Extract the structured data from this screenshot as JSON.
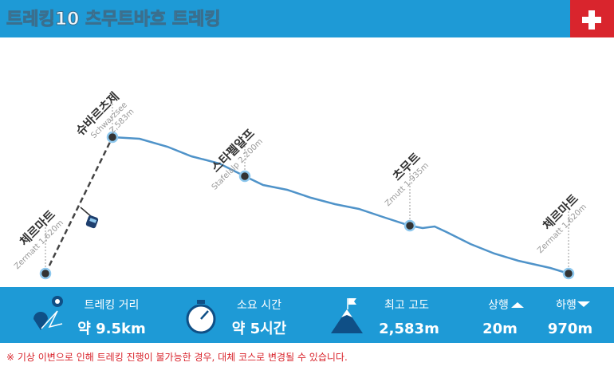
{
  "header": {
    "title": "트레킹10  츠무트바흐 트레킹"
  },
  "waypoints": [
    {
      "name": "체르마트",
      "sub": [
        "Zermatt 1,620m"
      ]
    },
    {
      "name": "슈바르츠제",
      "sub": [
        "Schwarzsee",
        "2,583m"
      ]
    },
    {
      "name": "스타펠알프",
      "sub": [
        "Stafelalp 2,200m"
      ]
    },
    {
      "name": "츠무트",
      "sub": [
        "Zmutt 1,935m"
      ]
    },
    {
      "name": "체르마트",
      "sub": [
        "Zermatt 1,620m"
      ]
    }
  ],
  "stats": [
    {
      "label": "트레킹 거리",
      "value": "약 9.5km"
    },
    {
      "label": "소요 시간",
      "value": "약 5시간"
    },
    {
      "label": "최고 고도",
      "value": "2,583m"
    },
    {
      "label": "상행",
      "value": "20m"
    },
    {
      "label": "하행",
      "value": "970m"
    }
  ],
  "note": "※ 기상 이변으로 인해 트레킹 진행이 불가능한 경우, 대체 코스로 변경될 수 있습니다."
}
